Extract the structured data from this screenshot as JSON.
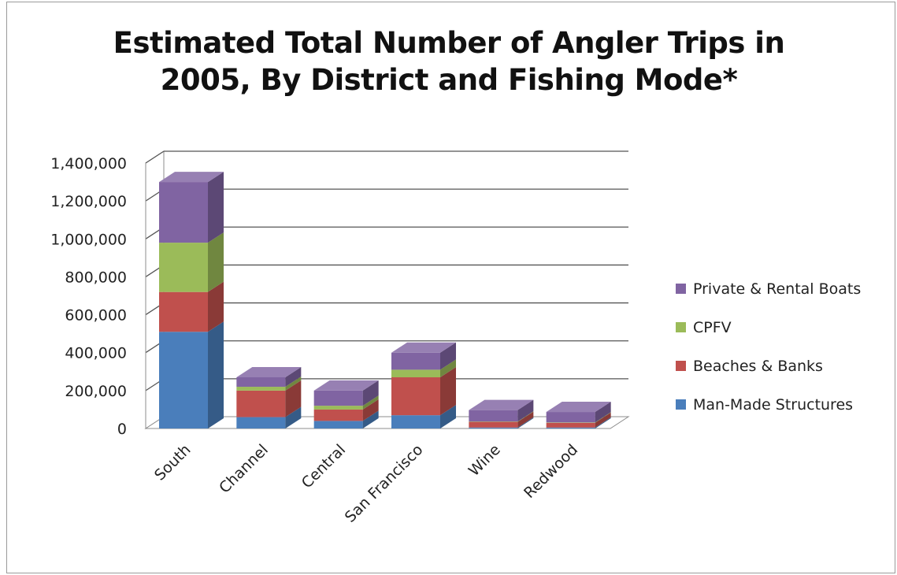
{
  "chart_data": {
    "type": "bar",
    "stacked": true,
    "style": "3d",
    "title": "Estimated Total Number of Angler Trips in\n2005, By District and Fishing Mode*",
    "xlabel": "",
    "ylabel": "",
    "categories": [
      "South",
      "Channel",
      "Central",
      "San Francisco",
      "Wine",
      "Redwood"
    ],
    "yticks": [
      "0",
      "200,000",
      "400,000",
      "600,000",
      "800,000",
      "1,000,000",
      "1,200,000",
      "1,400,000"
    ],
    "ylim": [
      0,
      1400000
    ],
    "grid": true,
    "legend_position": "right",
    "series": [
      {
        "name": "Man-Made Structures",
        "color": "#4A7EBB",
        "values": [
          510000,
          60000,
          40000,
          70000,
          5000,
          5000
        ]
      },
      {
        "name": "Beaches & Banks",
        "color": "#C0504D",
        "values": [
          210000,
          140000,
          60000,
          200000,
          30000,
          25000
        ]
      },
      {
        "name": "CPFV",
        "color": "#9BBB59",
        "values": [
          260000,
          20000,
          20000,
          40000,
          2000,
          2000
        ]
      },
      {
        "name": "Private & Rental Boats",
        "color": "#8064A2",
        "values": [
          320000,
          50000,
          80000,
          90000,
          60000,
          55000
        ]
      }
    ]
  }
}
